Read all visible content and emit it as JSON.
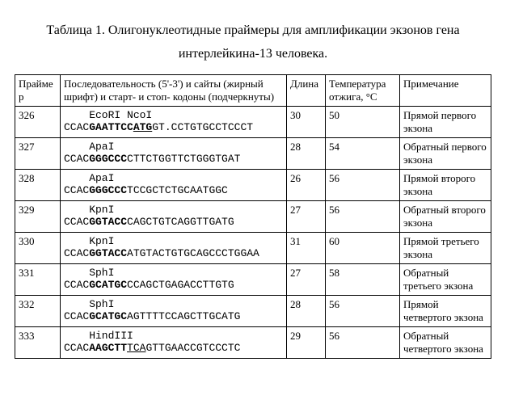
{
  "title_line1": "Таблица 1. Олигонуклеотидные праймеры для амплификации экзонов гена",
  "title_line2": "интерлейкина-13 человека.",
  "headers": {
    "primer": "Праймер",
    "seq": "Последовательность (5'-3') и сайты (жирный шрифт) и старт- и стоп- кодоны (подчеркнуты)",
    "len": "Длина",
    "temp": "Температура отжига, °C",
    "note": "Примечание"
  },
  "rows": [
    {
      "primer": "326",
      "enzyme_label": "    EcoRI NcoI",
      "seq_parts": [
        {
          "t": "CCAC"
        },
        {
          "t": "GAATTCC",
          "b": true
        },
        {
          "t": "ATG",
          "b": true,
          "u": true
        },
        {
          "t": "GT.CCTGTGCCTCCCT"
        }
      ],
      "len": "30",
      "temp": "50",
      "note": "Прямой первого экзона"
    },
    {
      "primer": "327",
      "enzyme_label": "    ApaI",
      "seq_parts": [
        {
          "t": "CCAC"
        },
        {
          "t": "GGGCCC",
          "b": true
        },
        {
          "t": "CTTCTGGTTCTGGGTGAT"
        }
      ],
      "len": "28",
      "temp": "54",
      "note": "Обратный первого экзона"
    },
    {
      "primer": "328",
      "enzyme_label": "    ApaI",
      "seq_parts": [
        {
          "t": "CCAC"
        },
        {
          "t": "GGGCCC",
          "b": true
        },
        {
          "t": "TCCGCTCTGCAATGGC"
        }
      ],
      "len": "26",
      "temp": "56",
      "note": "Прямой второго экзона"
    },
    {
      "primer": "329",
      "enzyme_label": "    KpnI",
      "seq_parts": [
        {
          "t": "CCAC"
        },
        {
          "t": "GGTACC",
          "b": true
        },
        {
          "t": "CAGCTGTCAGGTTGATG"
        }
      ],
      "len": "27",
      "temp": "56",
      "note": "Обратный второго экзона"
    },
    {
      "primer": "330",
      "enzyme_label": "    KpnI",
      "seq_parts": [
        {
          "t": "CCAC"
        },
        {
          "t": "GGTACC",
          "b": true
        },
        {
          "t": "ATGTACTGTGCAGCCCTGGAA"
        }
      ],
      "len": "31",
      "temp": "60",
      "note": "Прямой третьего экзона"
    },
    {
      "primer": "331",
      "enzyme_label": "    SphI",
      "seq_parts": [
        {
          "t": "CCAC"
        },
        {
          "t": "GCATGC",
          "b": true
        },
        {
          "t": "CCAGCTGAGACCTTGTG"
        }
      ],
      "len": "27",
      "temp": "58",
      "note": "Обратный третьего экзона"
    },
    {
      "primer": "332",
      "enzyme_label": "    SphI",
      "seq_parts": [
        {
          "t": "CCAC"
        },
        {
          "t": "GCATGC",
          "b": true
        },
        {
          "t": "AGTTTTCCAGCTTGCATG"
        }
      ],
      "len": "28",
      "temp": "56",
      "note": "Прямой четвертого экзона"
    },
    {
      "primer": "333",
      "enzyme_label": "    HindIII",
      "seq_parts": [
        {
          "t": "CCAC"
        },
        {
          "t": "AAGCTT",
          "b": true
        },
        {
          "t": "TCA",
          "u": true
        },
        {
          "t": "GTTGAACCGTCCCTC"
        }
      ],
      "len": "29",
      "temp": "56",
      "note": "Обратный четвертого экзона"
    }
  ]
}
